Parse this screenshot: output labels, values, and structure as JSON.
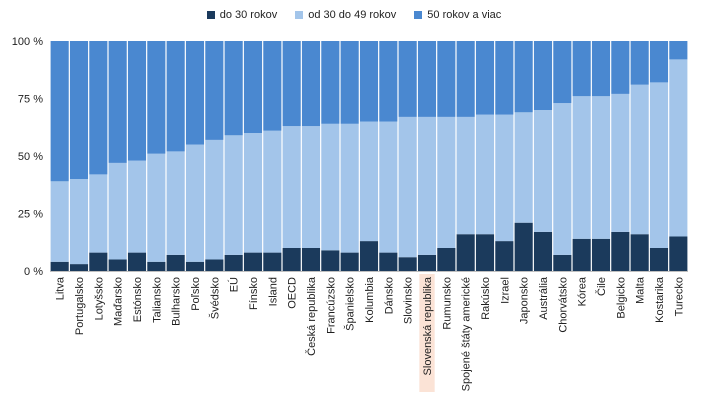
{
  "legend": [
    {
      "label": "do 30 rokov",
      "color": "#1b3a5c"
    },
    {
      "label": "od 30 do 49 rokov",
      "color": "#a3c5ea"
    },
    {
      "label": "50 rokov a viac",
      "color": "#4a88d0"
    }
  ],
  "highlight": {
    "category": "Slovenská republika",
    "color": "#fbe3d6"
  },
  "chart_data": {
    "type": "bar",
    "stacked": true,
    "categories": [
      "Litva",
      "Portugalsko",
      "Lotyšsko",
      "Maďarsko",
      "Estónsko",
      "Taliansko",
      "Bulharsko",
      "Poľsko",
      "Švédsko",
      "EÚ",
      "Fínsko",
      "Island",
      "OECD",
      "Česká republika",
      "Francúzsko",
      "Španielsko",
      "Kolumbia",
      "Dánsko",
      "Slovinsko",
      "Slovenská republika",
      "Rumunsko",
      "Spojené štáty americké",
      "Rakúsko",
      "Izrael",
      "Japonsko",
      "Austrália",
      "Chorvátsko",
      "Kórea",
      "Čile",
      "Belgicko",
      "Malta",
      "Kostarika",
      "Turecko"
    ],
    "series": [
      {
        "name": "do 30 rokov",
        "color": "#1b3a5c",
        "values": [
          4,
          3,
          8,
          5,
          8,
          4,
          7,
          4,
          5,
          7,
          8,
          8,
          10,
          10,
          9,
          8,
          13,
          8,
          6,
          7,
          10,
          16,
          16,
          13,
          21,
          17,
          7,
          14,
          14,
          17,
          16,
          10,
          15
        ]
      },
      {
        "name": "od 30 do 49 rokov",
        "color": "#a3c5ea",
        "values": [
          35,
          37,
          34,
          42,
          40,
          47,
          45,
          51,
          52,
          52,
          52,
          53,
          53,
          53,
          55,
          56,
          52,
          57,
          61,
          60,
          57,
          51,
          52,
          55,
          48,
          53,
          66,
          62,
          62,
          60,
          65,
          72,
          77
        ]
      },
      {
        "name": "50 rokov a viac",
        "color": "#4a88d0",
        "values": [
          61,
          60,
          58,
          53,
          52,
          49,
          48,
          45,
          43,
          41,
          40,
          39,
          37,
          37,
          36,
          36,
          35,
          35,
          33,
          33,
          33,
          33,
          32,
          32,
          31,
          30,
          27,
          24,
          24,
          23,
          19,
          18,
          8
        ]
      }
    ],
    "yticks": [
      "0 %",
      "25 %",
      "50 %",
      "75 %",
      "100 %"
    ],
    "ylim": [
      0,
      100
    ],
    "grid": false,
    "legend_position": "top"
  }
}
